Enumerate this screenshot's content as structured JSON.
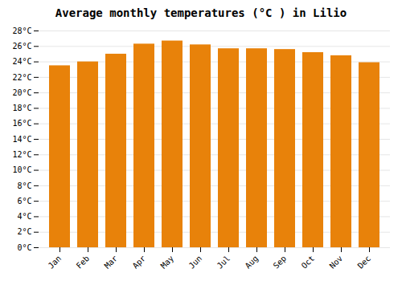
{
  "chart_data": {
    "type": "bar",
    "title": "Average monthly temperatures (°C ) in Lilio",
    "categories": [
      "Jan",
      "Feb",
      "Mar",
      "Apr",
      "May",
      "Jun",
      "Jul",
      "Aug",
      "Sep",
      "Oct",
      "Nov",
      "Dec"
    ],
    "values": [
      23.5,
      24.0,
      25.0,
      26.3,
      26.7,
      26.2,
      25.7,
      25.7,
      25.6,
      25.2,
      24.8,
      23.9
    ],
    "color": "#E8820A",
    "ylim": [
      0,
      28
    ],
    "yticks": [
      {
        "value": 0,
        "label": "0°C"
      },
      {
        "value": 2,
        "label": "2°C"
      },
      {
        "value": 4,
        "label": "4°C"
      },
      {
        "value": 6,
        "label": "6°C"
      },
      {
        "value": 8,
        "label": "8°C"
      },
      {
        "value": 10,
        "label": "10°C"
      },
      {
        "value": 12,
        "label": "12°C"
      },
      {
        "value": 14,
        "label": "14°C"
      },
      {
        "value": 16,
        "label": "16°C"
      },
      {
        "value": 18,
        "label": "18°C"
      },
      {
        "value": 20,
        "label": "20°C"
      },
      {
        "value": 22,
        "label": "22°C"
      },
      {
        "value": 24,
        "label": "24°C"
      },
      {
        "value": 26,
        "label": "26°C"
      },
      {
        "value": 28,
        "label": "28°C"
      }
    ],
    "grid": true
  }
}
